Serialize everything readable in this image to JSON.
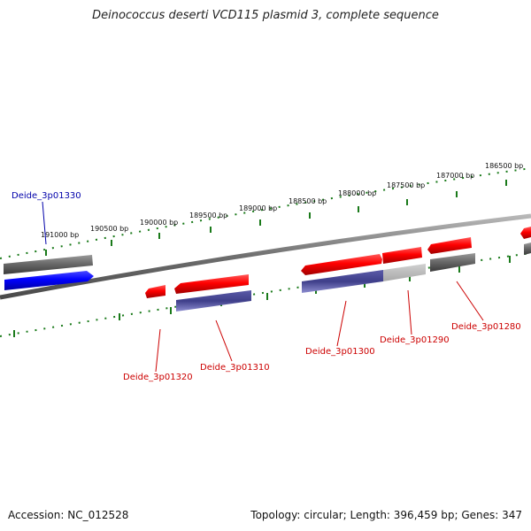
{
  "title": "Deinococcus deserti VCD115 plasmid 3, complete sequence",
  "footer": {
    "accession": "Accession: NC_012528",
    "summary": "Topology: circular; Length: 396,459 bp; Genes: 347"
  },
  "colors": {
    "forward_gene": "#ff0000",
    "reverse_gene": "#3f3f8f",
    "selected_gene": "#0000ff",
    "pseudo_gene": "#777777",
    "label_red": "#cc0000",
    "label_blue": "#0000aa",
    "ruler": "#1a7a1a",
    "backbone": "#888888"
  },
  "scale_labels": [
    "191000 bp",
    "190500 bp",
    "190000 bp",
    "189500 bp",
    "189000 bp",
    "188500 bp",
    "188000 bp",
    "187500 bp",
    "187000 bp",
    "186500 bp"
  ],
  "gene_labels": [
    {
      "id": "g1330",
      "text": "Deide_3p01330",
      "color": "#0000aa"
    },
    {
      "id": "g1320",
      "text": "Deide_3p01320",
      "color": "#cc0000"
    },
    {
      "id": "g1310",
      "text": "Deide_3p01310",
      "color": "#cc0000"
    },
    {
      "id": "g1300",
      "text": "Deide_3p01300",
      "color": "#cc0000"
    },
    {
      "id": "g1290",
      "text": "Deide_3p01290",
      "color": "#cc0000"
    },
    {
      "id": "g1280",
      "text": "Deide_3p01280",
      "color": "#cc0000"
    }
  ]
}
